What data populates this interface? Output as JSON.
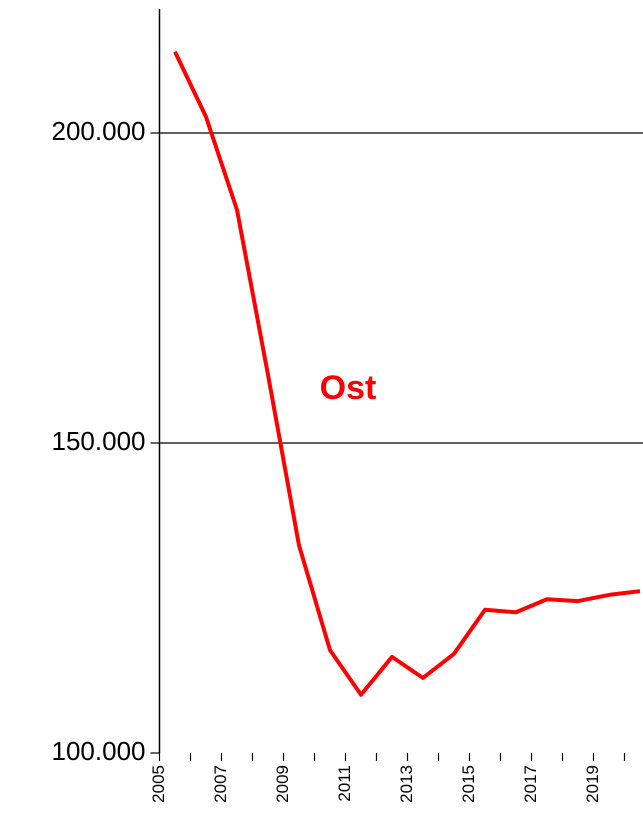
{
  "chart_data": {
    "type": "line",
    "categories": [
      "2005",
      null,
      "2007",
      null,
      "2009",
      null,
      "2011",
      null,
      "2013",
      null,
      "2015",
      null,
      "2017",
      null,
      "2019",
      null
    ],
    "series": [
      {
        "name": "Ost",
        "color": "#ff0000",
        "values": [
          213100,
          202600,
          187600,
          161000,
          133500,
          116600,
          109400,
          115500,
          112100,
          116000,
          123100,
          122700,
          124800,
          124500,
          125500,
          126100
        ]
      }
    ],
    "annotations": [
      "Ost"
    ],
    "ylim": [
      100000,
      220000
    ],
    "yticks": [
      {
        "value": 100000,
        "label": "100.000"
      },
      {
        "value": 150000,
        "label": "150.000"
      },
      {
        "value": 200000,
        "label": "200.000"
      }
    ],
    "grid": true
  }
}
